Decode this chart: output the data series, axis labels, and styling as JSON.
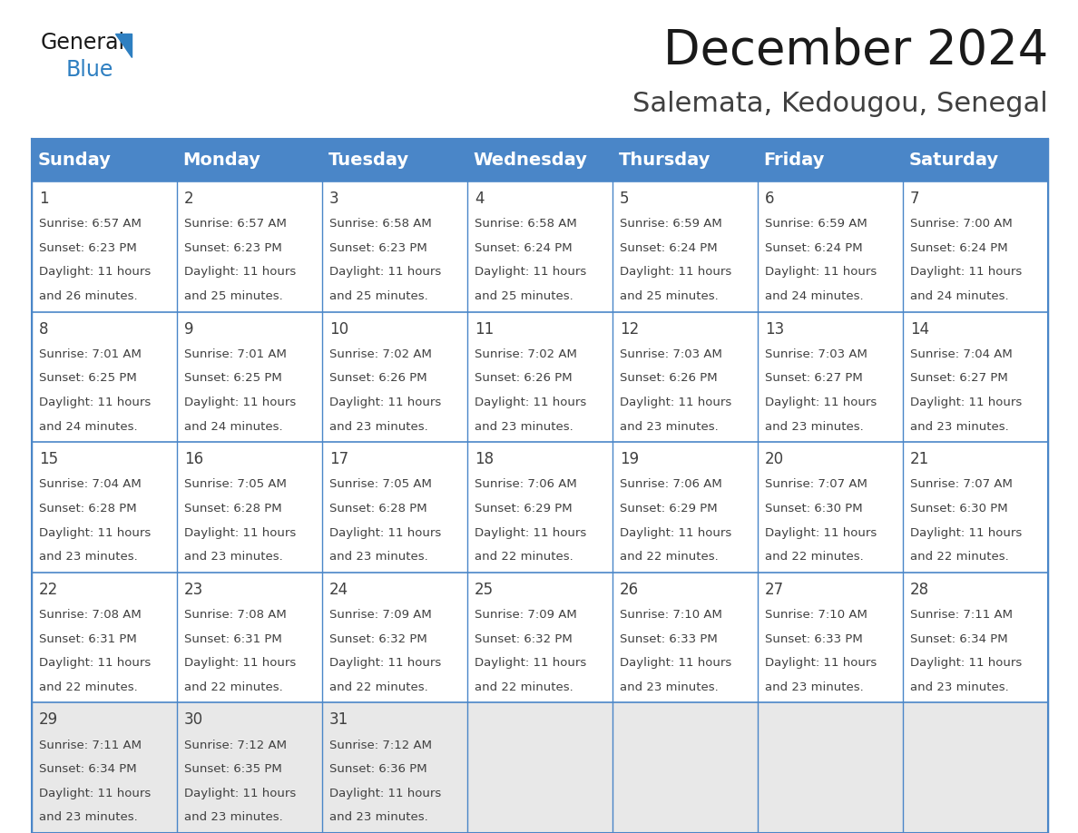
{
  "title": "December 2024",
  "subtitle": "Salemata, Kedougou, Senegal",
  "header_color": "#4a86c8",
  "header_text_color": "#ffffff",
  "day_headers": [
    "Sunday",
    "Monday",
    "Tuesday",
    "Wednesday",
    "Thursday",
    "Friday",
    "Saturday"
  ],
  "title_fontsize": 38,
  "subtitle_fontsize": 22,
  "header_fontsize": 14,
  "day_num_fontsize": 12,
  "cell_fontsize": 9.5,
  "grid_color": "#4a86c8",
  "text_color": "#404040",
  "last_row_bg": "#e8e8e8",
  "logo_general_color": "#1a1a1a",
  "logo_blue_color": "#2e7fc1",
  "logo_triangle_color": "#2e7fc1",
  "days": [
    {
      "day": 1,
      "col": 0,
      "row": 0,
      "sunrise": "6:57 AM",
      "sunset": "6:23 PM",
      "dl_hrs": "11 hours",
      "dl_min": "and 26 minutes."
    },
    {
      "day": 2,
      "col": 1,
      "row": 0,
      "sunrise": "6:57 AM",
      "sunset": "6:23 PM",
      "dl_hrs": "11 hours",
      "dl_min": "and 25 minutes."
    },
    {
      "day": 3,
      "col": 2,
      "row": 0,
      "sunrise": "6:58 AM",
      "sunset": "6:23 PM",
      "dl_hrs": "11 hours",
      "dl_min": "and 25 minutes."
    },
    {
      "day": 4,
      "col": 3,
      "row": 0,
      "sunrise": "6:58 AM",
      "sunset": "6:24 PM",
      "dl_hrs": "11 hours",
      "dl_min": "and 25 minutes."
    },
    {
      "day": 5,
      "col": 4,
      "row": 0,
      "sunrise": "6:59 AM",
      "sunset": "6:24 PM",
      "dl_hrs": "11 hours",
      "dl_min": "and 25 minutes."
    },
    {
      "day": 6,
      "col": 5,
      "row": 0,
      "sunrise": "6:59 AM",
      "sunset": "6:24 PM",
      "dl_hrs": "11 hours",
      "dl_min": "and 24 minutes."
    },
    {
      "day": 7,
      "col": 6,
      "row": 0,
      "sunrise": "7:00 AM",
      "sunset": "6:24 PM",
      "dl_hrs": "11 hours",
      "dl_min": "and 24 minutes."
    },
    {
      "day": 8,
      "col": 0,
      "row": 1,
      "sunrise": "7:01 AM",
      "sunset": "6:25 PM",
      "dl_hrs": "11 hours",
      "dl_min": "and 24 minutes."
    },
    {
      "day": 9,
      "col": 1,
      "row": 1,
      "sunrise": "7:01 AM",
      "sunset": "6:25 PM",
      "dl_hrs": "11 hours",
      "dl_min": "and 24 minutes."
    },
    {
      "day": 10,
      "col": 2,
      "row": 1,
      "sunrise": "7:02 AM",
      "sunset": "6:26 PM",
      "dl_hrs": "11 hours",
      "dl_min": "and 23 minutes."
    },
    {
      "day": 11,
      "col": 3,
      "row": 1,
      "sunrise": "7:02 AM",
      "sunset": "6:26 PM",
      "dl_hrs": "11 hours",
      "dl_min": "and 23 minutes."
    },
    {
      "day": 12,
      "col": 4,
      "row": 1,
      "sunrise": "7:03 AM",
      "sunset": "6:26 PM",
      "dl_hrs": "11 hours",
      "dl_min": "and 23 minutes."
    },
    {
      "day": 13,
      "col": 5,
      "row": 1,
      "sunrise": "7:03 AM",
      "sunset": "6:27 PM",
      "dl_hrs": "11 hours",
      "dl_min": "and 23 minutes."
    },
    {
      "day": 14,
      "col": 6,
      "row": 1,
      "sunrise": "7:04 AM",
      "sunset": "6:27 PM",
      "dl_hrs": "11 hours",
      "dl_min": "and 23 minutes."
    },
    {
      "day": 15,
      "col": 0,
      "row": 2,
      "sunrise": "7:04 AM",
      "sunset": "6:28 PM",
      "dl_hrs": "11 hours",
      "dl_min": "and 23 minutes."
    },
    {
      "day": 16,
      "col": 1,
      "row": 2,
      "sunrise": "7:05 AM",
      "sunset": "6:28 PM",
      "dl_hrs": "11 hours",
      "dl_min": "and 23 minutes."
    },
    {
      "day": 17,
      "col": 2,
      "row": 2,
      "sunrise": "7:05 AM",
      "sunset": "6:28 PM",
      "dl_hrs": "11 hours",
      "dl_min": "and 23 minutes."
    },
    {
      "day": 18,
      "col": 3,
      "row": 2,
      "sunrise": "7:06 AM",
      "sunset": "6:29 PM",
      "dl_hrs": "11 hours",
      "dl_min": "and 22 minutes."
    },
    {
      "day": 19,
      "col": 4,
      "row": 2,
      "sunrise": "7:06 AM",
      "sunset": "6:29 PM",
      "dl_hrs": "11 hours",
      "dl_min": "and 22 minutes."
    },
    {
      "day": 20,
      "col": 5,
      "row": 2,
      "sunrise": "7:07 AM",
      "sunset": "6:30 PM",
      "dl_hrs": "11 hours",
      "dl_min": "and 22 minutes."
    },
    {
      "day": 21,
      "col": 6,
      "row": 2,
      "sunrise": "7:07 AM",
      "sunset": "6:30 PM",
      "dl_hrs": "11 hours",
      "dl_min": "and 22 minutes."
    },
    {
      "day": 22,
      "col": 0,
      "row": 3,
      "sunrise": "7:08 AM",
      "sunset": "6:31 PM",
      "dl_hrs": "11 hours",
      "dl_min": "and 22 minutes."
    },
    {
      "day": 23,
      "col": 1,
      "row": 3,
      "sunrise": "7:08 AM",
      "sunset": "6:31 PM",
      "dl_hrs": "11 hours",
      "dl_min": "and 22 minutes."
    },
    {
      "day": 24,
      "col": 2,
      "row": 3,
      "sunrise": "7:09 AM",
      "sunset": "6:32 PM",
      "dl_hrs": "11 hours",
      "dl_min": "and 22 minutes."
    },
    {
      "day": 25,
      "col": 3,
      "row": 3,
      "sunrise": "7:09 AM",
      "sunset": "6:32 PM",
      "dl_hrs": "11 hours",
      "dl_min": "and 22 minutes."
    },
    {
      "day": 26,
      "col": 4,
      "row": 3,
      "sunrise": "7:10 AM",
      "sunset": "6:33 PM",
      "dl_hrs": "11 hours",
      "dl_min": "and 23 minutes."
    },
    {
      "day": 27,
      "col": 5,
      "row": 3,
      "sunrise": "7:10 AM",
      "sunset": "6:33 PM",
      "dl_hrs": "11 hours",
      "dl_min": "and 23 minutes."
    },
    {
      "day": 28,
      "col": 6,
      "row": 3,
      "sunrise": "7:11 AM",
      "sunset": "6:34 PM",
      "dl_hrs": "11 hours",
      "dl_min": "and 23 minutes."
    },
    {
      "day": 29,
      "col": 0,
      "row": 4,
      "sunrise": "7:11 AM",
      "sunset": "6:34 PM",
      "dl_hrs": "11 hours",
      "dl_min": "and 23 minutes."
    },
    {
      "day": 30,
      "col": 1,
      "row": 4,
      "sunrise": "7:12 AM",
      "sunset": "6:35 PM",
      "dl_hrs": "11 hours",
      "dl_min": "and 23 minutes."
    },
    {
      "day": 31,
      "col": 2,
      "row": 4,
      "sunrise": "7:12 AM",
      "sunset": "6:36 PM",
      "dl_hrs": "11 hours",
      "dl_min": "and 23 minutes."
    }
  ]
}
